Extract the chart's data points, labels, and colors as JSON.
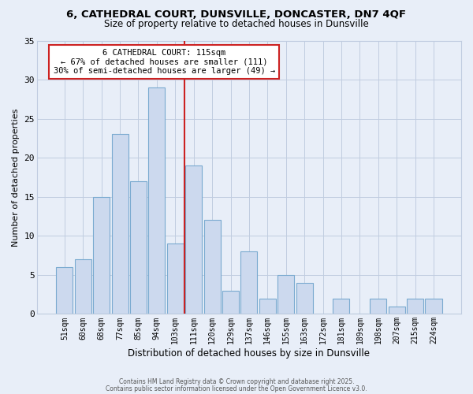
{
  "title_line1": "6, CATHEDRAL COURT, DUNSVILLE, DONCASTER, DN7 4QF",
  "title_line2": "Size of property relative to detached houses in Dunsville",
  "xlabel": "Distribution of detached houses by size in Dunsville",
  "ylabel": "Number of detached properties",
  "bar_labels": [
    "51sqm",
    "60sqm",
    "68sqm",
    "77sqm",
    "85sqm",
    "94sqm",
    "103sqm",
    "111sqm",
    "120sqm",
    "129sqm",
    "137sqm",
    "146sqm",
    "155sqm",
    "163sqm",
    "172sqm",
    "181sqm",
    "189sqm",
    "198sqm",
    "207sqm",
    "215sqm",
    "224sqm"
  ],
  "bar_values": [
    6,
    7,
    15,
    23,
    17,
    29,
    9,
    19,
    12,
    3,
    8,
    2,
    5,
    4,
    0,
    2,
    0,
    2,
    1,
    2,
    2
  ],
  "bar_color": "#ccd9ee",
  "bar_edge_color": "#7aaad0",
  "vline_color": "#cc2222",
  "vline_bin_index": 7,
  "annotation_text": "6 CATHEDRAL COURT: 115sqm\n← 67% of detached houses are smaller (111)\n30% of semi-detached houses are larger (49) →",
  "annotation_box_edge_color": "#cc2222",
  "annotation_box_face_color": "#ffffff",
  "ylim": [
    0,
    35
  ],
  "yticks": [
    0,
    5,
    10,
    15,
    20,
    25,
    30,
    35
  ],
  "grid_color": "#c0cce0",
  "background_color": "#e8eef8",
  "footer_line1": "Contains HM Land Registry data © Crown copyright and database right 2025.",
  "footer_line2": "Contains public sector information licensed under the Open Government Licence v3.0."
}
